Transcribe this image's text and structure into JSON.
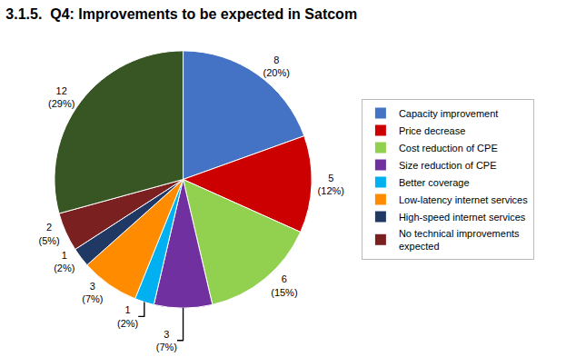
{
  "chart_data": {
    "type": "pie",
    "title": "3.1.5.  Q4: Improvements to be expected in Satcom",
    "categories": [
      "Capacity improvement",
      "Price decrease",
      "Cost reduction of CPE",
      "Size reduction of CPE",
      "Better coverage",
      "Low-latency internet services",
      "High-speed internet services",
      "No technical improvements\nexpected",
      null
    ],
    "values": [
      8,
      5,
      6,
      3,
      1,
      3,
      1,
      2,
      12
    ],
    "value_labels": [
      "8\n(20%)",
      "5\n(12%)",
      "6\n(15%)",
      "3\n(7%)",
      "1\n(2%)",
      "3\n(7%)",
      "1\n(2%)",
      "2\n(5%)",
      "12\n(29%)"
    ],
    "colors": [
      "#4472C4",
      "#CC0000",
      "#92D050",
      "#7030A0",
      "#00B0F0",
      "#FF8C00",
      "#1F3864",
      "#7B2020",
      "#375623"
    ],
    "data_labels": true,
    "legend": "right"
  }
}
